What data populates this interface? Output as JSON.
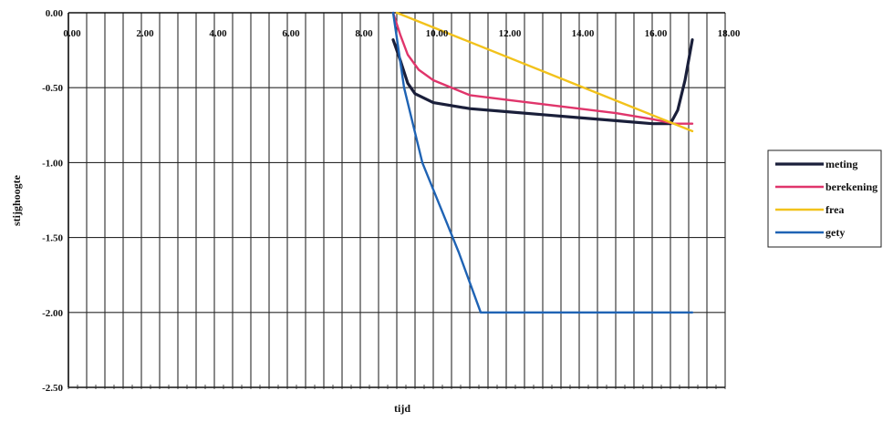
{
  "chart_data": {
    "type": "line",
    "xlabel": "tijd",
    "ylabel": "stijghoogte",
    "xlim": [
      0,
      18
    ],
    "ylim": [
      -2.5,
      0
    ],
    "x_ticks": [
      "0.00",
      "2.00",
      "4.00",
      "6.00",
      "8.00",
      "10.00",
      "12.00",
      "14.00",
      "16.00",
      "18.00"
    ],
    "y_ticks": [
      "0.00",
      "-0.50",
      "-1.00",
      "-1.50",
      "-2.00",
      "-2.50"
    ],
    "grid": true,
    "legend_position": "right",
    "series": [
      {
        "name": "meting",
        "color": "#1a1f3a",
        "x": [
          8.9,
          9.1,
          9.3,
          9.5,
          10.0,
          11.0,
          12.0,
          13.0,
          14.0,
          15.0,
          16.0,
          16.5,
          16.7,
          16.9,
          17.1
        ],
        "y": [
          -0.18,
          -0.32,
          -0.47,
          -0.54,
          -0.6,
          -0.64,
          -0.66,
          -0.68,
          -0.7,
          -0.72,
          -0.74,
          -0.74,
          -0.65,
          -0.45,
          -0.18
        ]
      },
      {
        "name": "berekening",
        "color": "#e0356b",
        "x": [
          8.9,
          9.1,
          9.3,
          9.6,
          10.0,
          11.0,
          12.0,
          13.0,
          14.0,
          15.0,
          16.0,
          16.6,
          17.1
        ],
        "y": [
          0.0,
          -0.15,
          -0.28,
          -0.38,
          -0.45,
          -0.55,
          -0.58,
          -0.61,
          -0.64,
          -0.67,
          -0.71,
          -0.74,
          -0.74
        ]
      },
      {
        "name": "frea",
        "color": "#f2c21b",
        "x": [
          9.0,
          17.1
        ],
        "y": [
          0.0,
          -0.79
        ]
      },
      {
        "name": "gety",
        "color": "#1f63b4",
        "x": [
          8.9,
          9.2,
          9.7,
          10.2,
          10.7,
          11.3,
          12.0,
          14.0,
          17.1
        ],
        "y": [
          0.0,
          -0.5,
          -1.0,
          -1.3,
          -1.6,
          -2.0,
          -2.0,
          -2.0,
          -2.0
        ]
      }
    ]
  }
}
